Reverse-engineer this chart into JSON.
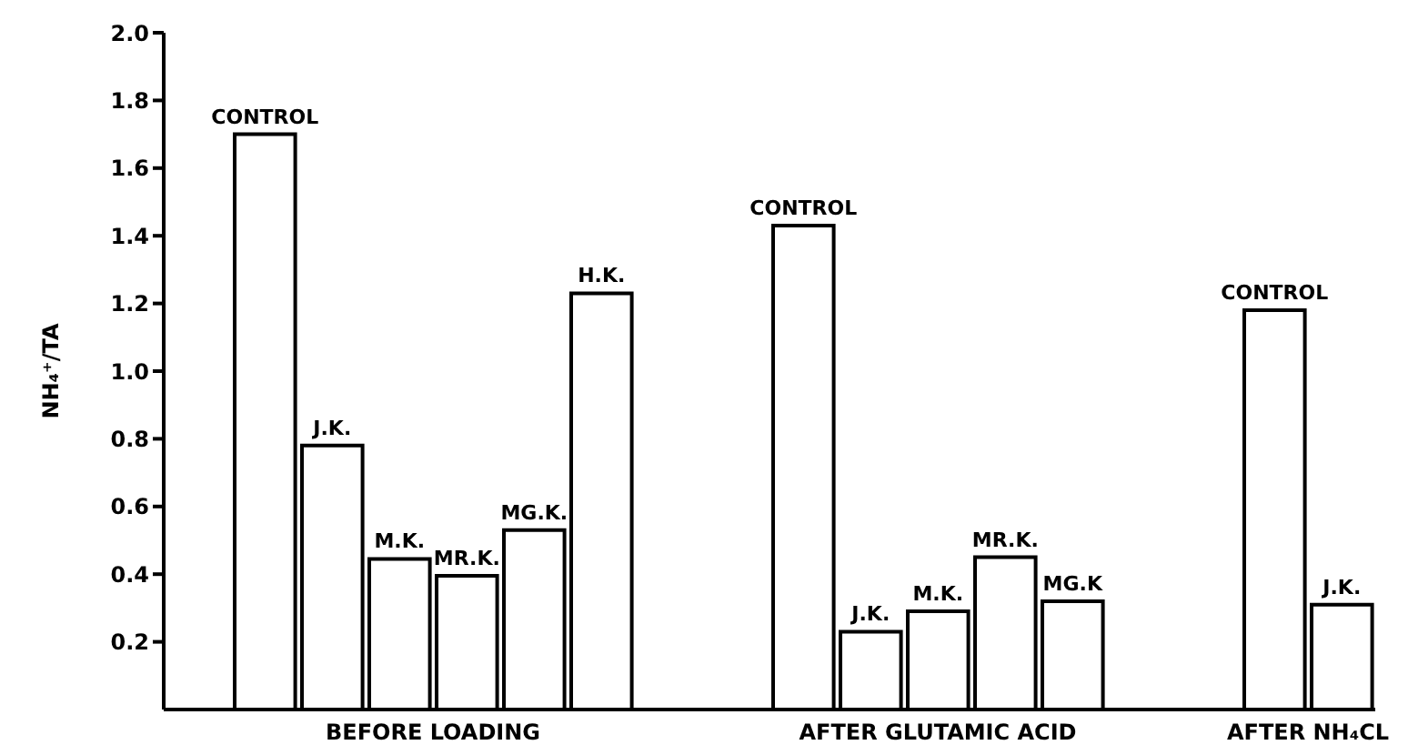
{
  "chart_data": {
    "type": "bar",
    "ylabel": "NH₄⁺/TA",
    "categories": [
      null,
      "CONTROL",
      "J.K.",
      "M.K.",
      "MR.K.",
      "MG.K.",
      "H.K.",
      null,
      null,
      "CONTROL",
      "J.K.",
      "M.K.",
      "MR.K.",
      "MG.K",
      null,
      null,
      "CONTROL",
      "J.K."
    ],
    "values": [
      null,
      1.7,
      0.78,
      0.445,
      0.395,
      0.53,
      1.23,
      null,
      null,
      1.43,
      0.23,
      0.29,
      0.45,
      0.32,
      null,
      null,
      1.18,
      0.31
    ],
    "color": "#ffffff",
    "ylim": [
      0,
      2
    ],
    "yticks": [
      0.2,
      0.4,
      0.6,
      0.8,
      {
        "value": 1,
        "label": "1.0"
      },
      1.2,
      1.4,
      1.6,
      1.8,
      {
        "value": 2,
        "label": "2.0"
      }
    ],
    "annotations": [
      "BEFORE LOADING",
      "AFTER GLUTAMIC ACID",
      "AFTER NH₄CL"
    ],
    "grid": false,
    "legend": false
  }
}
